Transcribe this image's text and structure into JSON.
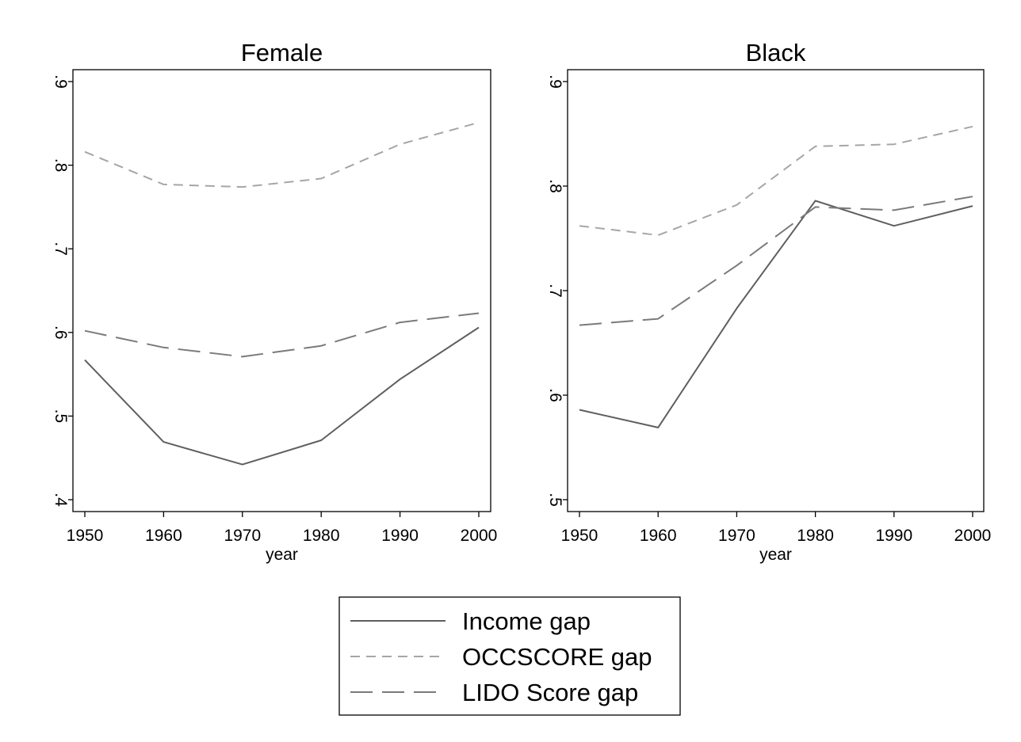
{
  "chart_data": [
    {
      "type": "line",
      "title": "Female",
      "xlabel": "year",
      "ylabel": "",
      "x": [
        1950,
        1960,
        1970,
        1980,
        1990,
        2000
      ],
      "xticks": [
        "1950",
        "1960",
        "1970",
        "1980",
        "1990",
        "2000"
      ],
      "yticks": [
        ".4",
        ".5",
        ".6",
        ".7",
        ".8",
        ".9"
      ],
      "yticks_values": [
        0.4,
        0.5,
        0.6,
        0.7,
        0.8,
        0.9
      ],
      "xlim": [
        1950,
        2000
      ],
      "ylim": [
        0.4,
        0.9
      ],
      "grid": false,
      "series": [
        {
          "name": "Income gap",
          "values": [
            0.567,
            0.469,
            0.442,
            0.471,
            0.544,
            0.606
          ]
        },
        {
          "name": "OCCSCORE gap",
          "values": [
            0.816,
            0.777,
            0.774,
            0.784,
            0.825,
            0.851
          ]
        },
        {
          "name": "LIDO Score gap",
          "values": [
            0.602,
            0.582,
            0.571,
            0.584,
            0.612,
            0.623
          ]
        }
      ]
    },
    {
      "type": "line",
      "title": "Black",
      "xlabel": "year",
      "ylabel": "",
      "x": [
        1950,
        1960,
        1970,
        1980,
        1990,
        2000
      ],
      "xticks": [
        "1950",
        "1960",
        "1970",
        "1980",
        "1990",
        "2000"
      ],
      "yticks": [
        ".5",
        ".6",
        ".7",
        ".8",
        ".9"
      ],
      "yticks_values": [
        0.5,
        0.6,
        0.7,
        0.8,
        0.9
      ],
      "xlim": [
        1950,
        2000
      ],
      "ylim": [
        0.5,
        0.9
      ],
      "grid": false,
      "series": [
        {
          "name": "Income gap",
          "values": [
            0.586,
            0.569,
            0.683,
            0.786,
            0.762,
            0.781
          ]
        },
        {
          "name": "OCCSCORE gap",
          "values": [
            0.762,
            0.753,
            0.782,
            0.838,
            0.84,
            0.857
          ]
        },
        {
          "name": "LIDO Score gap",
          "values": [
            0.667,
            0.673,
            0.724,
            0.78,
            0.777,
            0.79
          ]
        }
      ]
    }
  ],
  "legend": {
    "placement": "bottom-center",
    "entries": [
      {
        "label": "Income gap",
        "color": "#5f5f5f",
        "style": "solid"
      },
      {
        "label": "OCCSCORE gap",
        "color": "#a6a6a6",
        "style": "short-dash"
      },
      {
        "label": "LIDO Score gap",
        "color": "#7a7a7a",
        "style": "long-dash"
      }
    ]
  },
  "colors": {
    "Income gap": "#5f5f5f",
    "OCCSCORE gap": "#a6a6a6",
    "LIDO Score gap": "#7a7a7a",
    "axis": "#000000"
  }
}
